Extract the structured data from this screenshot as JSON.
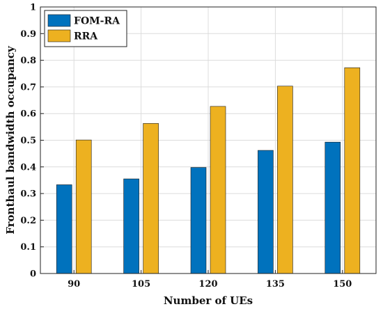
{
  "chart_data": {
    "type": "bar",
    "title": "",
    "xlabel": "Number of UEs",
    "ylabel": "Fronthaul bandwidth occupancy",
    "categories": [
      "90",
      "105",
      "120",
      "135",
      "150"
    ],
    "series": [
      {
        "name": "FOM-RA",
        "color": "#0072BD",
        "values": [
          0.333,
          0.355,
          0.398,
          0.462,
          0.493
        ]
      },
      {
        "name": "RRA",
        "color": "#EDB120",
        "values": [
          0.501,
          0.563,
          0.627,
          0.703,
          0.772
        ]
      }
    ],
    "ylim": [
      0,
      1
    ],
    "yticks": [
      "0",
      "0.1",
      "0.2",
      "0.3",
      "0.4",
      "0.5",
      "0.6",
      "0.7",
      "0.8",
      "0.9",
      "1"
    ],
    "grid": true,
    "legend_position": "top-left"
  }
}
